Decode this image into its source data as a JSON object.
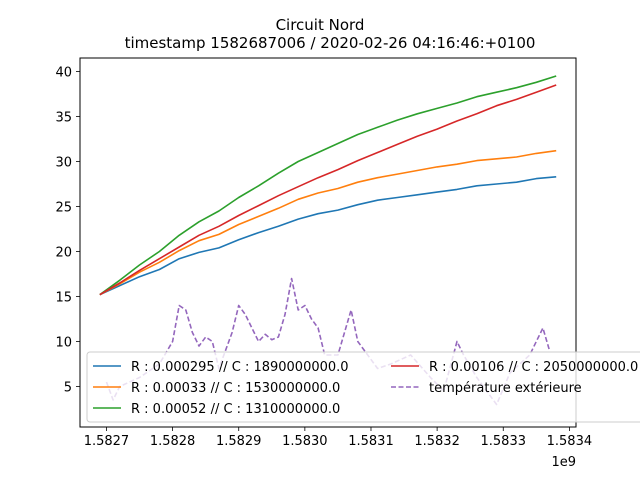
{
  "chart_data": {
    "type": "line",
    "title": "Circuit Nord",
    "subtitle": "timestamp 1582687006 / 2020-02-26 04:16:46:+0100",
    "x_offset_label": "1e9",
    "xlim": [
      1582660000.0,
      1583410000.0
    ],
    "ylim": [
      0.5,
      41.5
    ],
    "x_ticks": [
      {
        "value": 1582700000.0,
        "label": "1.5827"
      },
      {
        "value": 1582800000.0,
        "label": "1.5828"
      },
      {
        "value": 1582900000.0,
        "label": "1.5829"
      },
      {
        "value": 1583000000.0,
        "label": "1.5830"
      },
      {
        "value": 1583100000.0,
        "label": "1.5831"
      },
      {
        "value": 1583200000.0,
        "label": "1.5832"
      },
      {
        "value": 1583300000.0,
        "label": "1.5833"
      },
      {
        "value": 1583400000.0,
        "label": "1.5834"
      }
    ],
    "y_ticks": [
      {
        "value": 5,
        "label": "5"
      },
      {
        "value": 10,
        "label": "10"
      },
      {
        "value": 15,
        "label": "15"
      },
      {
        "value": 20,
        "label": "20"
      },
      {
        "value": 25,
        "label": "25"
      },
      {
        "value": 30,
        "label": "30"
      },
      {
        "value": 35,
        "label": "35"
      },
      {
        "value": 40,
        "label": "40"
      }
    ],
    "series": [
      {
        "name": "R : 0.000295 // C : 1890000000.0",
        "color": "#1f77b4",
        "dashed": false,
        "points": [
          [
            1582690000.0,
            15.2
          ],
          [
            1582720000.0,
            16.2
          ],
          [
            1582750000.0,
            17.2
          ],
          [
            1582780000.0,
            18.0
          ],
          [
            1582810000.0,
            19.2
          ],
          [
            1582840000.0,
            19.9
          ],
          [
            1582870000.0,
            20.4
          ],
          [
            1582900000.0,
            21.3
          ],
          [
            1582930000.0,
            22.1
          ],
          [
            1582960000.0,
            22.8
          ],
          [
            1582990000.0,
            23.6
          ],
          [
            1583020000.0,
            24.2
          ],
          [
            1583050000.0,
            24.6
          ],
          [
            1583080000.0,
            25.2
          ],
          [
            1583110000.0,
            25.7
          ],
          [
            1583140000.0,
            26.0
          ],
          [
            1583170000.0,
            26.3
          ],
          [
            1583200000.0,
            26.6
          ],
          [
            1583230000.0,
            26.9
          ],
          [
            1583260000.0,
            27.3
          ],
          [
            1583290000.0,
            27.5
          ],
          [
            1583320000.0,
            27.7
          ],
          [
            1583350000.0,
            28.1
          ],
          [
            1583380000.0,
            28.3
          ]
        ]
      },
      {
        "name": "R : 0.00033 // C : 1530000000.0",
        "color": "#ff7f0e",
        "dashed": false,
        "points": [
          [
            1582690000.0,
            15.2
          ],
          [
            1582720000.0,
            16.4
          ],
          [
            1582750000.0,
            17.7
          ],
          [
            1582780000.0,
            18.8
          ],
          [
            1582810000.0,
            20.1
          ],
          [
            1582840000.0,
            21.2
          ],
          [
            1582870000.0,
            21.9
          ],
          [
            1582900000.0,
            23.0
          ],
          [
            1582930000.0,
            23.9
          ],
          [
            1582960000.0,
            24.8
          ],
          [
            1582990000.0,
            25.8
          ],
          [
            1583020000.0,
            26.5
          ],
          [
            1583050000.0,
            27.0
          ],
          [
            1583080000.0,
            27.7
          ],
          [
            1583110000.0,
            28.2
          ],
          [
            1583140000.0,
            28.6
          ],
          [
            1583170000.0,
            29.0
          ],
          [
            1583200000.0,
            29.4
          ],
          [
            1583230000.0,
            29.7
          ],
          [
            1583260000.0,
            30.1
          ],
          [
            1583290000.0,
            30.3
          ],
          [
            1583320000.0,
            30.5
          ],
          [
            1583350000.0,
            30.9
          ],
          [
            1583380000.0,
            31.2
          ]
        ]
      },
      {
        "name": "R : 0.00052 // C : 1310000000.0",
        "color": "#2ca02c",
        "dashed": false,
        "points": [
          [
            1582690000.0,
            15.2
          ],
          [
            1582720000.0,
            16.8
          ],
          [
            1582750000.0,
            18.5
          ],
          [
            1582780000.0,
            20.0
          ],
          [
            1582810000.0,
            21.8
          ],
          [
            1582840000.0,
            23.3
          ],
          [
            1582870000.0,
            24.5
          ],
          [
            1582900000.0,
            26.0
          ],
          [
            1582930000.0,
            27.3
          ],
          [
            1582960000.0,
            28.7
          ],
          [
            1582990000.0,
            30.0
          ],
          [
            1583020000.0,
            31.0
          ],
          [
            1583050000.0,
            32.0
          ],
          [
            1583080000.0,
            33.0
          ],
          [
            1583110000.0,
            33.8
          ],
          [
            1583140000.0,
            34.6
          ],
          [
            1583170000.0,
            35.3
          ],
          [
            1583200000.0,
            35.9
          ],
          [
            1583230000.0,
            36.5
          ],
          [
            1583260000.0,
            37.2
          ],
          [
            1583290000.0,
            37.7
          ],
          [
            1583320000.0,
            38.2
          ],
          [
            1583350000.0,
            38.8
          ],
          [
            1583380000.0,
            39.5
          ]
        ]
      },
      {
        "name": "R : 0.00106 // C : 2050000000.0",
        "color": "#d62728",
        "dashed": false,
        "points": [
          [
            1582690000.0,
            15.2
          ],
          [
            1582720000.0,
            16.5
          ],
          [
            1582750000.0,
            17.9
          ],
          [
            1582780000.0,
            19.2
          ],
          [
            1582810000.0,
            20.5
          ],
          [
            1582840000.0,
            21.8
          ],
          [
            1582870000.0,
            22.8
          ],
          [
            1582900000.0,
            24.0
          ],
          [
            1582930000.0,
            25.1
          ],
          [
            1582960000.0,
            26.2
          ],
          [
            1582990000.0,
            27.2
          ],
          [
            1583020000.0,
            28.2
          ],
          [
            1583050000.0,
            29.1
          ],
          [
            1583080000.0,
            30.1
          ],
          [
            1583110000.0,
            31.0
          ],
          [
            1583140000.0,
            31.9
          ],
          [
            1583170000.0,
            32.8
          ],
          [
            1583200000.0,
            33.6
          ],
          [
            1583230000.0,
            34.5
          ],
          [
            1583260000.0,
            35.3
          ],
          [
            1583290000.0,
            36.2
          ],
          [
            1583320000.0,
            36.9
          ],
          [
            1583350000.0,
            37.7
          ],
          [
            1583380000.0,
            38.5
          ]
        ]
      },
      {
        "name": "température extérieure",
        "color": "#9467bd",
        "dashed": true,
        "points": [
          [
            1582700000.0,
            5.5
          ],
          [
            1582710000.0,
            3.5
          ],
          [
            1582720000.0,
            5.0
          ],
          [
            1582750000.0,
            6.0
          ],
          [
            1582780000.0,
            7.5
          ],
          [
            1582800000.0,
            10.0
          ],
          [
            1582810000.0,
            14.0
          ],
          [
            1582820000.0,
            13.5
          ],
          [
            1582830000.0,
            11.0
          ],
          [
            1582840000.0,
            9.5
          ],
          [
            1582850000.0,
            10.5
          ],
          [
            1582860000.0,
            10.0
          ],
          [
            1582870000.0,
            7.0
          ],
          [
            1582890000.0,
            11.0
          ],
          [
            1582900000.0,
            14.0
          ],
          [
            1582910000.0,
            13.0
          ],
          [
            1582920000.0,
            11.5
          ],
          [
            1582930000.0,
            10.0
          ],
          [
            1582940000.0,
            10.8
          ],
          [
            1582950000.0,
            10.2
          ],
          [
            1582960000.0,
            10.5
          ],
          [
            1582970000.0,
            13.0
          ],
          [
            1582980000.0,
            17.0
          ],
          [
            1582990000.0,
            13.5
          ],
          [
            1583000000.0,
            14.0
          ],
          [
            1583010000.0,
            12.5
          ],
          [
            1583020000.0,
            11.5
          ],
          [
            1583030000.0,
            8.5
          ],
          [
            1583050000.0,
            8.5
          ],
          [
            1583060000.0,
            11.0
          ],
          [
            1583070000.0,
            13.5
          ],
          [
            1583080000.0,
            10.0
          ],
          [
            1583090000.0,
            9.0
          ],
          [
            1583110000.0,
            7.0
          ],
          [
            1583130000.0,
            7.5
          ],
          [
            1583160000.0,
            8.5
          ],
          [
            1583190000.0,
            6.0
          ],
          [
            1583210000.0,
            4.5
          ],
          [
            1583230000.0,
            10.0
          ],
          [
            1583240000.0,
            8.5
          ],
          [
            1583260000.0,
            6.0
          ],
          [
            1583280000.0,
            4.0
          ],
          [
            1583290000.0,
            3.0
          ],
          [
            1583310000.0,
            6.5
          ],
          [
            1583340000.0,
            8.5
          ],
          [
            1583350000.0,
            10.0
          ],
          [
            1583360000.0,
            11.5
          ],
          [
            1583370000.0,
            9.0
          ]
        ]
      }
    ],
    "legend_order": [
      0,
      3,
      1,
      4,
      2
    ],
    "grid": false,
    "legend_placement": "lower-left"
  }
}
